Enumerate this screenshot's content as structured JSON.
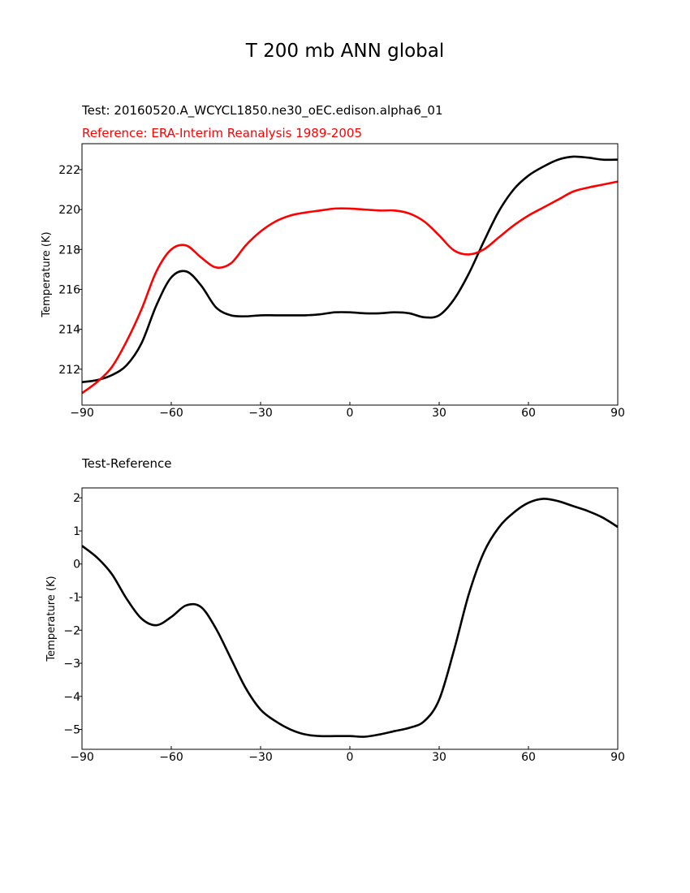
{
  "title": "T 200 mb ANN global",
  "test_label": "Test: 20160520.A_WCYCL1850.ne30_oEC.edison.alpha6_01",
  "reference_label": "Reference: ERA-Interim Reanalysis 1989-2005",
  "diff_label": "Test-Reference",
  "chart_data": [
    {
      "type": "line",
      "title": "",
      "xlabel": "",
      "ylabel": "Temperature (K)",
      "xlim": [
        -90,
        90
      ],
      "ylim": [
        210.2,
        223.3
      ],
      "xticks": [
        -90,
        -60,
        -30,
        0,
        30,
        60,
        90
      ],
      "xtick_labels": [
        "−90",
        "−60",
        "−30",
        "0",
        "30",
        "60",
        "90"
      ],
      "yticks": [
        212,
        214,
        216,
        218,
        220,
        222
      ],
      "ytick_labels": [
        "212",
        "214",
        "216",
        "218",
        "220",
        "222"
      ],
      "grid": false,
      "series": [
        {
          "name": "Test: 20160520.A_WCYCL1850.ne30_oEC.edison.alpha6_01",
          "color": "#000000",
          "x": [
            -90,
            -85,
            -80,
            -75,
            -70,
            -65,
            -60,
            -55,
            -50,
            -45,
            -40,
            -35,
            -30,
            -25,
            -20,
            -15,
            -10,
            -5,
            0,
            5,
            10,
            15,
            20,
            25,
            30,
            35,
            40,
            45,
            50,
            55,
            60,
            65,
            70,
            75,
            80,
            85,
            90
          ],
          "y": [
            211.35,
            211.45,
            211.7,
            212.2,
            213.3,
            215.2,
            216.6,
            216.9,
            216.2,
            215.1,
            214.7,
            214.65,
            214.7,
            214.7,
            214.7,
            214.7,
            214.75,
            214.85,
            214.85,
            214.8,
            214.8,
            214.85,
            214.8,
            214.6,
            214.7,
            215.5,
            216.8,
            218.4,
            219.9,
            221.0,
            221.7,
            222.15,
            222.5,
            222.65,
            222.6,
            222.5,
            222.5
          ]
        },
        {
          "name": "Reference: ERA-Interim Reanalysis 1989-2005",
          "color": "#ff0000",
          "x": [
            -90,
            -85,
            -80,
            -75,
            -70,
            -65,
            -60,
            -55,
            -50,
            -45,
            -40,
            -35,
            -30,
            -25,
            -20,
            -15,
            -10,
            -5,
            0,
            5,
            10,
            15,
            20,
            25,
            30,
            35,
            40,
            45,
            50,
            55,
            60,
            65,
            70,
            75,
            80,
            85,
            90
          ],
          "y": [
            210.8,
            211.35,
            212.1,
            213.4,
            215.0,
            216.9,
            218.0,
            218.2,
            217.6,
            217.1,
            217.3,
            218.2,
            218.9,
            219.4,
            219.7,
            219.85,
            219.95,
            220.05,
            220.05,
            220.0,
            219.95,
            219.95,
            219.8,
            219.4,
            218.7,
            217.95,
            217.75,
            218.0,
            218.6,
            219.2,
            219.7,
            220.1,
            220.5,
            220.9,
            221.1,
            221.25,
            221.4
          ]
        }
      ]
    },
    {
      "type": "line",
      "title": "Test-Reference",
      "xlabel": "",
      "ylabel": "Temperature (K)",
      "xlim": [
        -90,
        90
      ],
      "ylim": [
        -5.6,
        2.3
      ],
      "xticks": [
        -90,
        -60,
        -30,
        0,
        30,
        60,
        90
      ],
      "xtick_labels": [
        "−90",
        "−60",
        "−30",
        "0",
        "30",
        "60",
        "90"
      ],
      "yticks": [
        -5,
        -4,
        -3,
        -2,
        -1,
        0,
        1,
        2
      ],
      "ytick_labels": [
        "−5",
        "−4",
        "−3",
        "−2",
        "-1",
        "0",
        "1",
        "2"
      ],
      "grid": false,
      "series": [
        {
          "name": "",
          "color": "#000000",
          "x": [
            -90,
            -85,
            -80,
            -75,
            -70,
            -65,
            -60,
            -55,
            -50,
            -45,
            -40,
            -35,
            -30,
            -25,
            -20,
            -15,
            -10,
            -5,
            0,
            5,
            10,
            15,
            20,
            25,
            30,
            35,
            40,
            45,
            50,
            55,
            60,
            65,
            70,
            75,
            80,
            85,
            90
          ],
          "y": [
            0.55,
            0.2,
            -0.3,
            -1.05,
            -1.65,
            -1.85,
            -1.6,
            -1.25,
            -1.3,
            -1.95,
            -2.85,
            -3.75,
            -4.4,
            -4.75,
            -5.0,
            -5.15,
            -5.2,
            -5.2,
            -5.2,
            -5.22,
            -5.15,
            -5.05,
            -4.95,
            -4.75,
            -4.1,
            -2.6,
            -0.9,
            0.35,
            1.1,
            1.55,
            1.85,
            1.97,
            1.9,
            1.75,
            1.6,
            1.4,
            1.12
          ]
        }
      ]
    }
  ]
}
